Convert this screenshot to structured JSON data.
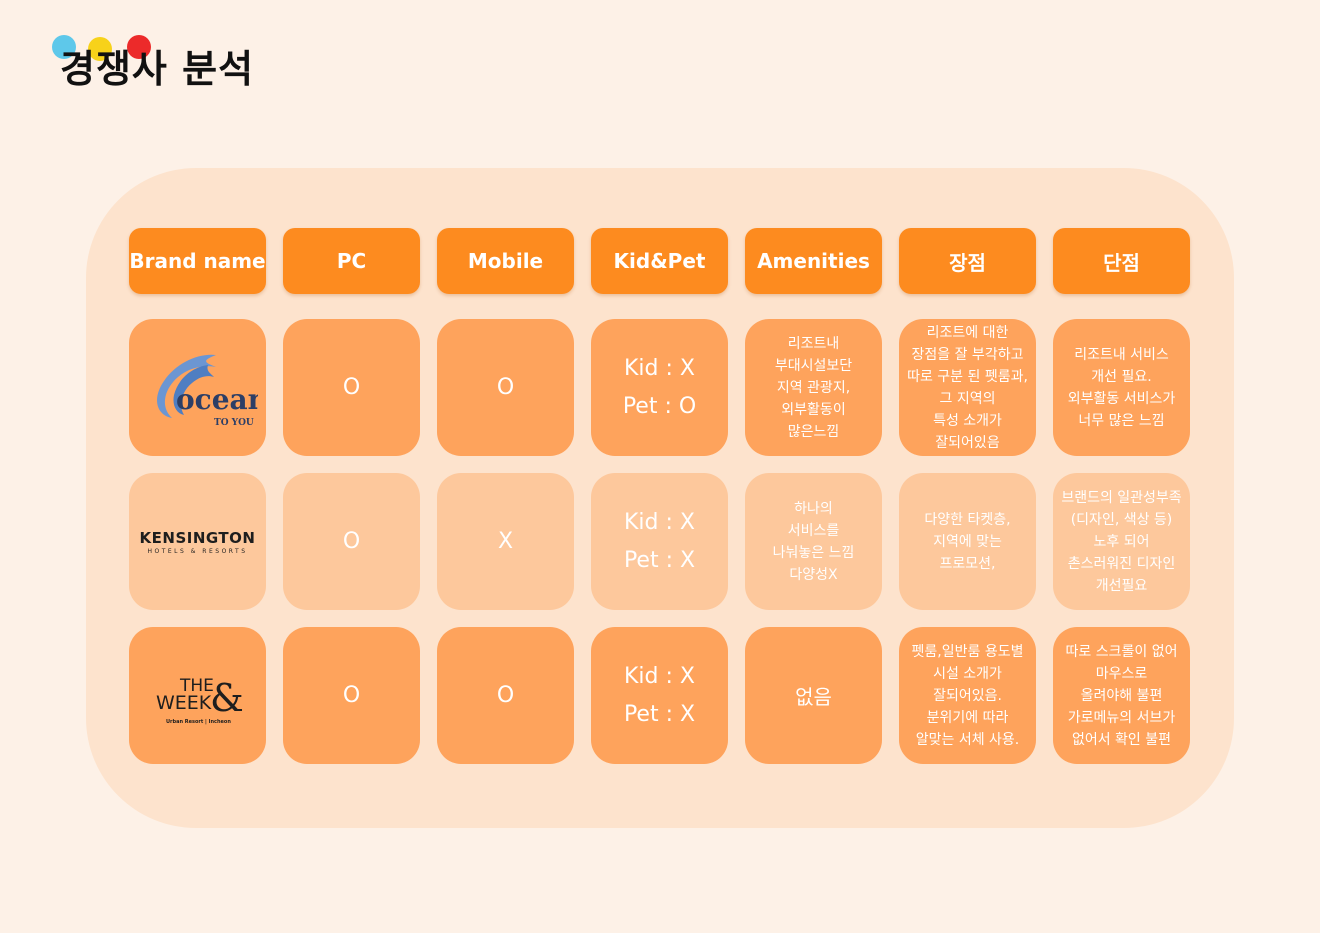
{
  "page": {
    "title": "경쟁사 분석"
  },
  "header": [
    "Brand name",
    "PC",
    "Mobile",
    "Kid&Pet",
    "Amenities",
    "장점",
    "단점"
  ],
  "rows": [
    {
      "brand": {
        "logo": "ocean-to-you-logo",
        "name": "ocean",
        "sub": "TO YOU"
      },
      "pc": "O",
      "mobile": "O",
      "kid": "Kid : X",
      "pet": "Pet : O",
      "amenities": "리조트내\n부대시설보단\n지역 관광지,\n외부활동이\n많은느낌",
      "pros": "리조트에 대한\n장점을 잘 부각하고\n따로 구분 된 펫룸과,\n그 지역의\n특성 소개가\n잘되어있음",
      "cons": "리조트내 서비스\n개선 필요.\n외부활동 서비스가\n너무 많은 느낌"
    },
    {
      "brand": {
        "logo": "kensington-logo",
        "name": "KENSINGTON",
        "sub": "HOTELS & RESORTS"
      },
      "pc": "O",
      "mobile": "X",
      "kid": "Kid : X",
      "pet": "Pet : X",
      "amenities": "하나의\n서비스를\n나눠놓은 느낌\n다양성X",
      "pros": "다양한 타켓층,\n지역에 맞는\n프로모션,",
      "cons": "브랜드의 일관성부족\n(디자인, 색상 등)\n노후 되어\n촌스러워진 디자인\n개선필요"
    },
    {
      "brand": {
        "logo": "the-week-logo",
        "name1": "THE",
        "name2": "WEEK",
        "amp": "&",
        "sub": "Urban Resort | Incheon"
      },
      "pc": "O",
      "mobile": "O",
      "kid": "Kid : X",
      "pet": "Pet : X",
      "amenities": "없음",
      "pros": "펫룸,일반룸 용도별\n시설 소개가\n잘되어있음.\n분위기에 따라\n알맞는 서체 사용.",
      "cons": "따로 스크롤이 없어\n마우스로\n올려야해 불편\n가로메뉴의 서브가\n없어서 확인 불편"
    }
  ],
  "colors": {
    "header": "#fd8b1f",
    "cell_dark": "#fea35c",
    "cell_light": "#fdc89c",
    "panel": "#fde3cd",
    "background": "#fdf1e7"
  }
}
